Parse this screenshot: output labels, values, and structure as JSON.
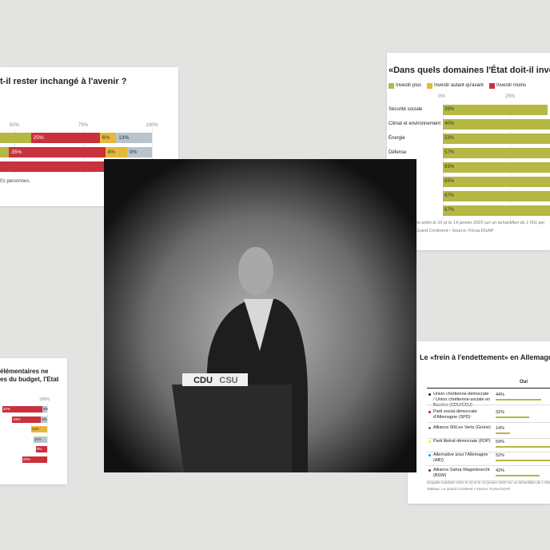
{
  "cards": [
    {
      "title": "t-il rester inchangé à l'avenir ?",
      "ticks": [
        {
          "value": 50,
          "label": "50%"
        },
        {
          "value": 75,
          "label": "75%"
        },
        {
          "value": 100,
          "label": "100%"
        }
      ],
      "rows": [
        [
          {
            "value": 56,
            "label": null,
            "color": "#b5b842"
          },
          {
            "value": 25,
            "label": "25%",
            "color": "#c8323c"
          },
          {
            "value": 6,
            "label": "6%",
            "color": "#e5b83a"
          },
          {
            "value": 13,
            "label": "13%",
            "color": "#b8c4cc"
          }
        ],
        [
          {
            "value": 48,
            "label": null,
            "color": "#b5b842"
          },
          {
            "value": 35,
            "label": "35%",
            "color": "#c8323c"
          },
          {
            "value": 8,
            "label": "8%",
            "color": "#e5b83a"
          },
          {
            "value": 9,
            "label": "9%",
            "color": "#b8c4cc"
          }
        ],
        [
          {
            "value": 86,
            "label": null,
            "color": "#c8323c"
          },
          {
            "value": 9,
            "label": "9%",
            "color": "#e5b83a"
          },
          {
            "value": 5,
            "label": null,
            "color": "#b8c4cc"
          }
        ]
      ],
      "note": "01 personnes."
    },
    {
      "title": "«Dans quels domaines l'État doit-il investir",
      "legend": [
        {
          "name": "Investir plus",
          "color": "#b5b842"
        },
        {
          "name": "Investir autant qu'avant",
          "color": "#e5b83a"
        },
        {
          "name": "Investir moins",
          "color": "#c8323c"
        }
      ],
      "ticks": [
        {
          "value": 0,
          "label": "0%"
        },
        {
          "value": 25,
          "label": "25%"
        }
      ],
      "categories": [
        "Sécurité sociale",
        "Climat et environnement",
        "Énergie",
        "Défense",
        null,
        null,
        null,
        null
      ],
      "values": [
        39,
        40,
        53,
        57,
        63,
        65,
        67,
        67
      ],
      "value_labels": [
        "39%",
        "40%",
        "53%",
        "57%",
        "63%",
        "65%",
        "67%",
        "67%"
      ],
      "notes": [
        "ite entre le 10 et le 14 janvier 2025 sur un échantillon de 1 001 per",
        "Grand Continent • Source: Forsa-DGAP"
      ]
    },
    {
      "title_lines": [
        "élémentaires ne",
        "es du budget, l'Etat"
      ],
      "tick": {
        "value": 100,
        "label": "100%"
      },
      "rows": [
        [
          {
            "value": 32,
            "label": "32%",
            "color": "#c8323c"
          },
          {
            "value": 4,
            "label": "4%",
            "color": "#b8c4cc"
          }
        ],
        [
          {
            "value": 23,
            "label": "23%",
            "color": "#c8323c"
          },
          {
            "value": 5,
            "label": "5%",
            "color": "#b8c4cc"
          }
        ],
        [
          {
            "value": 13,
            "label": "13%",
            "color": "#e5b83a"
          }
        ],
        [
          {
            "value": 11,
            "label": "11%",
            "color": "#b8c4cc"
          }
        ],
        [
          {
            "value": 9,
            "label": "9%",
            "color": "#c8323c"
          }
        ],
        [
          {
            "value": 20,
            "label": "20%",
            "color": "#c8323c"
          }
        ]
      ]
    },
    {
      "title": "Le «frein à l'endettement» en Allemagne d",
      "column": "Oui",
      "rows": [
        {
          "party": "Union chrétienne-démocrate / Union chrétienne-sociale en Bavière (CDU/CSU)",
          "dot": "#222222",
          "value": 44,
          "value_label": "44%"
        },
        {
          "party": "Parti social-démocrate d'Allemagne (SPD)",
          "dot": "#e3000f",
          "value": 32,
          "value_label": "32%"
        },
        {
          "party": "Alliance 90/Les Verts (Grüne)",
          "dot": "#46962b",
          "value": 14,
          "value_label": "14%"
        },
        {
          "party": "Parti libéral-démocrate (FDP)",
          "dot": "#ffed00",
          "value": 59,
          "value_label": "59%"
        },
        {
          "party": "Alternative pour l'Allemagne (AfD)",
          "dot": "#009ee0",
          "value": 52,
          "value_label": "52%"
        },
        {
          "party": "Alliance Sahra Wagenknecht (BSW)",
          "dot": "#7d254f",
          "value": 42,
          "value_label": "42%"
        }
      ],
      "notes": [
        "Enquête conduite entre le 10 et le 14 janvier 2025 sur un échantillon de 1 001 p",
        "Tableau: Le Grand Continent • Source: Forsa-DGAP"
      ]
    }
  ],
  "photo": {
    "podium": [
      "CDU",
      "CSU"
    ]
  }
}
